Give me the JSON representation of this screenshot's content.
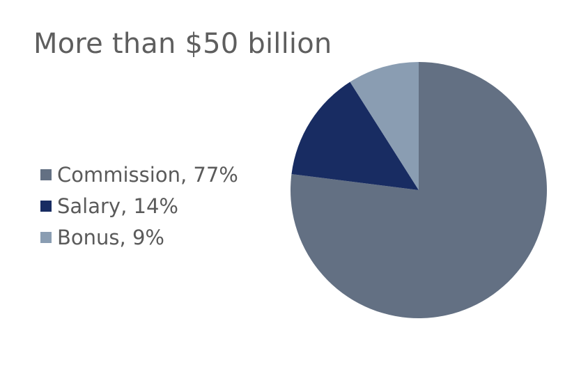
{
  "title": "More than $50 billion",
  "colors": {
    "commission": "#637083",
    "salary": "#182c62",
    "bonus": "#8a9db2",
    "text": "#5e5e5e"
  },
  "chart_data": {
    "type": "pie",
    "title": "More than $50 billion",
    "slices": [
      {
        "label": "Commission, 77%",
        "name": "Commission",
        "value": 77,
        "color": "#637083"
      },
      {
        "label": "Salary, 14%",
        "name": "Salary",
        "value": 14,
        "color": "#182c62"
      },
      {
        "label": "Bonus, 9%",
        "name": "Bonus",
        "value": 9,
        "color": "#8a9db2"
      }
    ],
    "start_angle": "12 o'clock",
    "direction": "clockwise",
    "legend_position": "left"
  }
}
